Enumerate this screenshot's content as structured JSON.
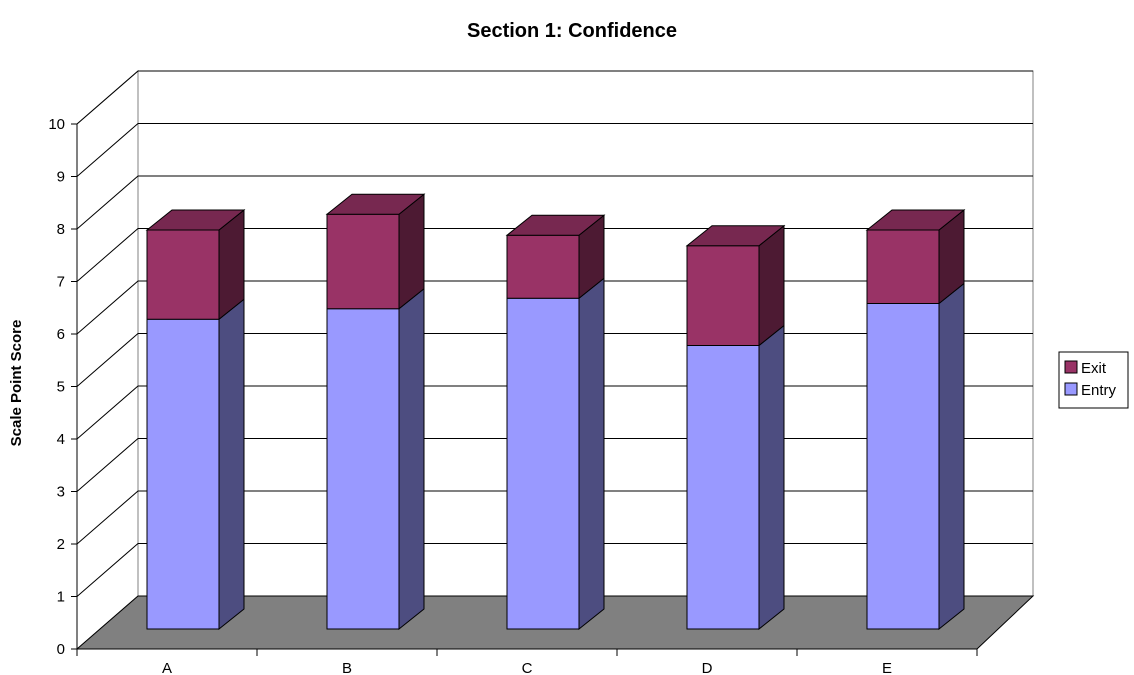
{
  "chart_data": {
    "type": "bar",
    "stacked": true,
    "three_d": true,
    "title": "Section 1: Confidence",
    "xlabel": "",
    "ylabel": "Scale Point Score",
    "categories": [
      "A",
      "B",
      "C",
      "D",
      "E"
    ],
    "ylim": [
      0,
      10
    ],
    "yticks": [
      "0",
      "1",
      "2",
      "3",
      "4",
      "5",
      "6",
      "7",
      "8",
      "9",
      "10"
    ],
    "grid": true,
    "legend_position": "right",
    "legend_order": [
      "Exit",
      "Entry"
    ],
    "series": [
      {
        "name": "Entry",
        "values": [
          5.9,
          6.1,
          6.3,
          5.4,
          6.2
        ],
        "color": "#9999FF"
      },
      {
        "name": "Exit",
        "values": [
          1.7,
          1.8,
          1.2,
          1.9,
          1.4
        ],
        "color": "#993366"
      }
    ],
    "floor_color": "#808080"
  }
}
